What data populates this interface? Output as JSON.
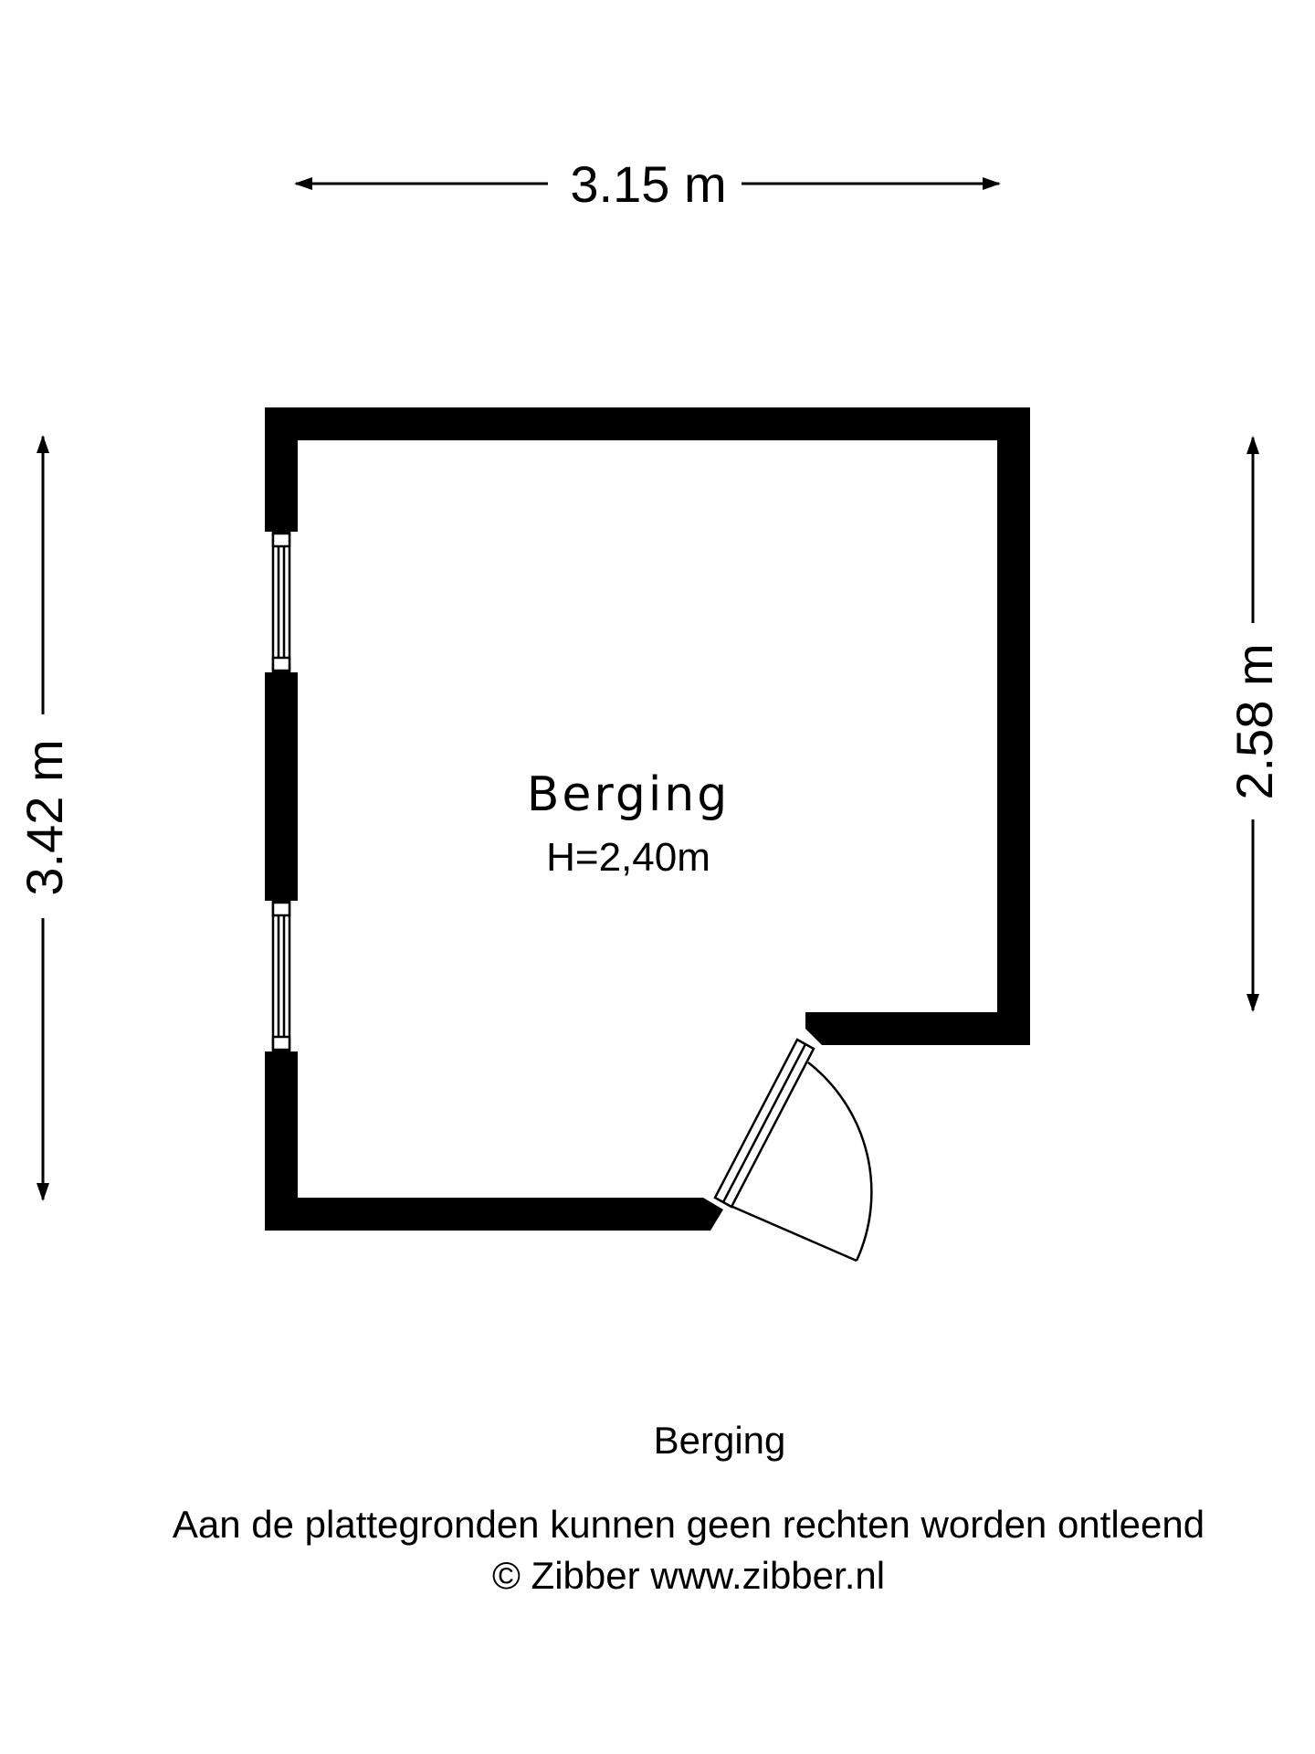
{
  "dimensions": {
    "width": "3.15 m",
    "depth_left": "3.42 m",
    "depth_right": "2.58 m"
  },
  "room": {
    "name": "Berging",
    "height": "H=2,40m"
  },
  "footer": {
    "floor_title": "Berging",
    "disclaimer": "Aan de plattegronden kunnen geen rechten worden ontleend",
    "copyright": "© Zibber www.zibber.nl"
  }
}
